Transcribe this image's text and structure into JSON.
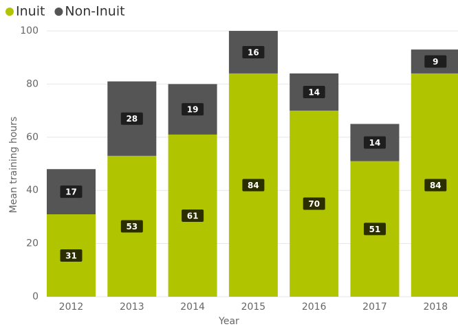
{
  "chart_data": {
    "type": "stacked_bar",
    "x_label": "Year",
    "y_label": "Mean training hours",
    "categories": [
      "2012",
      "2013",
      "2014",
      "2015",
      "2016",
      "2017",
      "2018"
    ],
    "series": [
      {
        "name": "Inuit",
        "color": "#b0c400",
        "values": [
          31,
          53,
          61,
          84,
          70,
          51,
          84
        ]
      },
      {
        "name": "Non-Inuit",
        "color": "#555555",
        "values": [
          17,
          28,
          19,
          16,
          14,
          14,
          9
        ]
      }
    ],
    "ylim": [
      0,
      100
    ],
    "yticks": [
      0,
      20,
      40,
      60,
      80,
      100
    ],
    "grid": true
  }
}
